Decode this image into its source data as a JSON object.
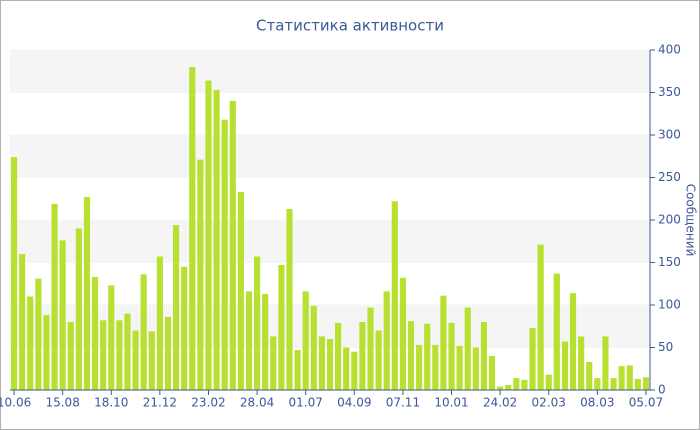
{
  "chart_data": {
    "type": "bar",
    "title": "Статистика активности",
    "y_label": "Сообщений",
    "categories": [
      "10.06",
      null,
      null,
      null,
      null,
      null,
      "15.08",
      null,
      null,
      null,
      null,
      null,
      "18.10",
      null,
      null,
      null,
      null,
      null,
      "21.12",
      null,
      null,
      null,
      null,
      null,
      "23.02",
      null,
      null,
      null,
      null,
      null,
      "28.04",
      null,
      null,
      null,
      null,
      null,
      "01.07",
      null,
      null,
      null,
      null,
      null,
      "04.09",
      null,
      null,
      null,
      null,
      null,
      "07.11",
      null,
      null,
      null,
      null,
      null,
      "10.01",
      null,
      null,
      null,
      null,
      null,
      "24.02",
      null,
      null,
      null,
      null,
      null,
      "02.03",
      null,
      null,
      null,
      null,
      null,
      "08.03",
      null,
      null,
      null,
      null,
      null,
      "05.07"
    ],
    "values": [
      274,
      160,
      110,
      131,
      88,
      219,
      176,
      80,
      190,
      227,
      133,
      82,
      123,
      82,
      90,
      70,
      136,
      69,
      157,
      86,
      194,
      145,
      380,
      271,
      364,
      353,
      318,
      340,
      233,
      116,
      157,
      113,
      63,
      147,
      213,
      47,
      116,
      99,
      63,
      60,
      79,
      50,
      45,
      80,
      97,
      70,
      116,
      222,
      132,
      81,
      53,
      78,
      53,
      111,
      79,
      52,
      97,
      50,
      80,
      40,
      4,
      6,
      14,
      12,
      73,
      171,
      18,
      137,
      57,
      114,
      63,
      33,
      14,
      63,
      14,
      28,
      29,
      13,
      15
    ],
    "color": "#b8e030",
    "ylim": [
      0,
      400
    ],
    "yticks": [
      0,
      50,
      100,
      150,
      200,
      250,
      300,
      350,
      400
    ],
    "grid": true,
    "y_axis_side": "right"
  }
}
